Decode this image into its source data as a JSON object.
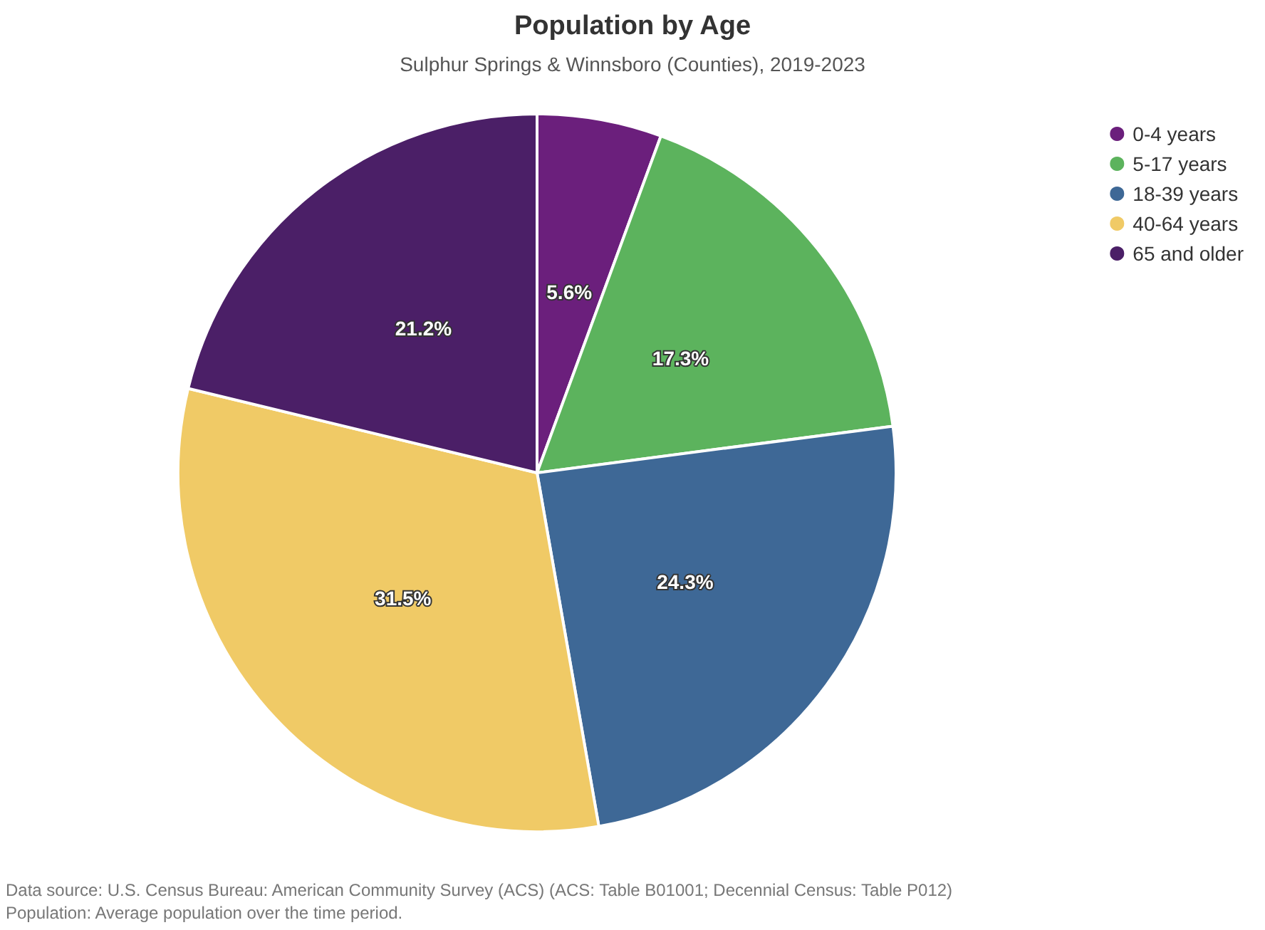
{
  "chart_data": {
    "type": "pie",
    "title": "Population by Age",
    "subtitle": "Sulphur Springs & Winnsboro (Counties), 2019-2023",
    "categories": [
      "0-4 years",
      "5-17 years",
      "18-39 years",
      "40-64 years",
      "65 and older"
    ],
    "values": [
      5.6,
      17.3,
      24.3,
      31.5,
      21.2
    ],
    "colors": [
      "#6b1f7c",
      "#5cb35d",
      "#3e6896",
      "#f0ca66",
      "#4b1f67"
    ],
    "value_labels": [
      "5.6%",
      "17.3%",
      "24.3%",
      "31.5%",
      "21.2%"
    ],
    "legend": "top right",
    "annotations": [
      "Data source: U.S. Census Bureau: American Community Survey (ACS) (ACS: Table B01001; Decennial Census: Table P012)",
      "Population: Average population over the time period."
    ]
  }
}
